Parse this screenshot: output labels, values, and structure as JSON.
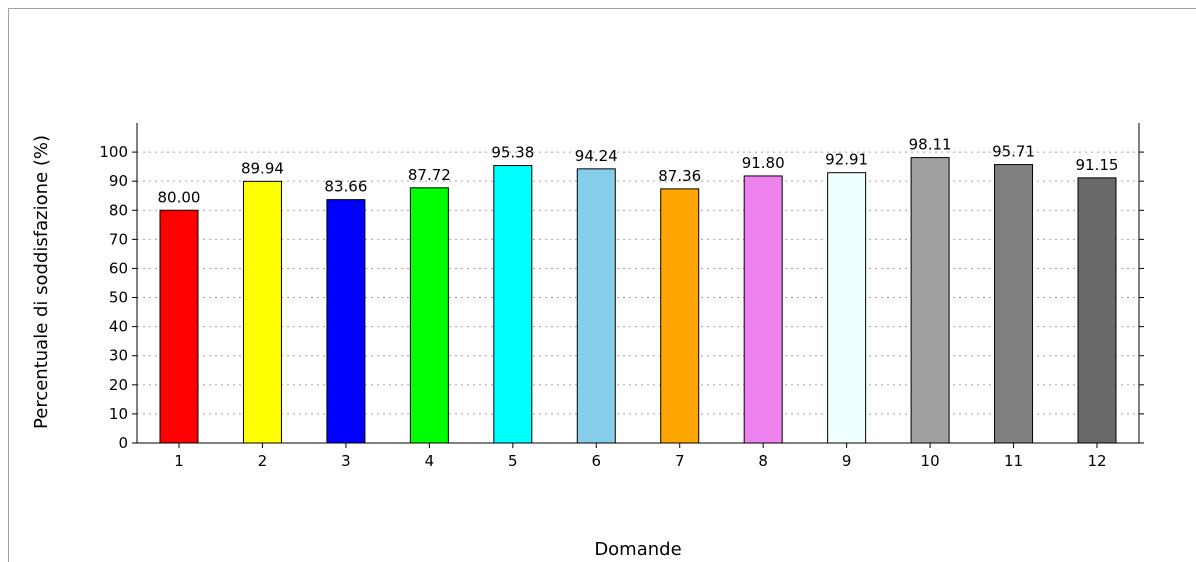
{
  "chart_data": {
    "type": "bar",
    "title": "",
    "xlabel": "Domande",
    "ylabel": "Percentuale di soddisfazione (%)",
    "categories": [
      "1",
      "2",
      "3",
      "4",
      "5",
      "6",
      "7",
      "8",
      "9",
      "10",
      "11",
      "12"
    ],
    "values": [
      80.0,
      89.94,
      83.66,
      87.72,
      95.38,
      94.24,
      87.36,
      91.8,
      92.91,
      98.11,
      95.71,
      91.15
    ],
    "value_labels": [
      "80.00",
      "89.94",
      "83.66",
      "87.72",
      "95.38",
      "94.24",
      "87.36",
      "91.80",
      "92.91",
      "98.11",
      "95.71",
      "91.15"
    ],
    "colors": [
      "#ff0000",
      "#ffff00",
      "#0000ff",
      "#00ff00",
      "#00ffff",
      "#87ceeb",
      "#ffa500",
      "#ee82ee",
      "#f0ffff",
      "#a0a0a0",
      "#808080",
      "#696969"
    ],
    "ylim": [
      0,
      110
    ],
    "yticks": [
      0,
      10,
      20,
      30,
      40,
      50,
      60,
      70,
      80,
      90,
      100
    ],
    "grid": "horizontal-dotted",
    "legend": "none"
  }
}
